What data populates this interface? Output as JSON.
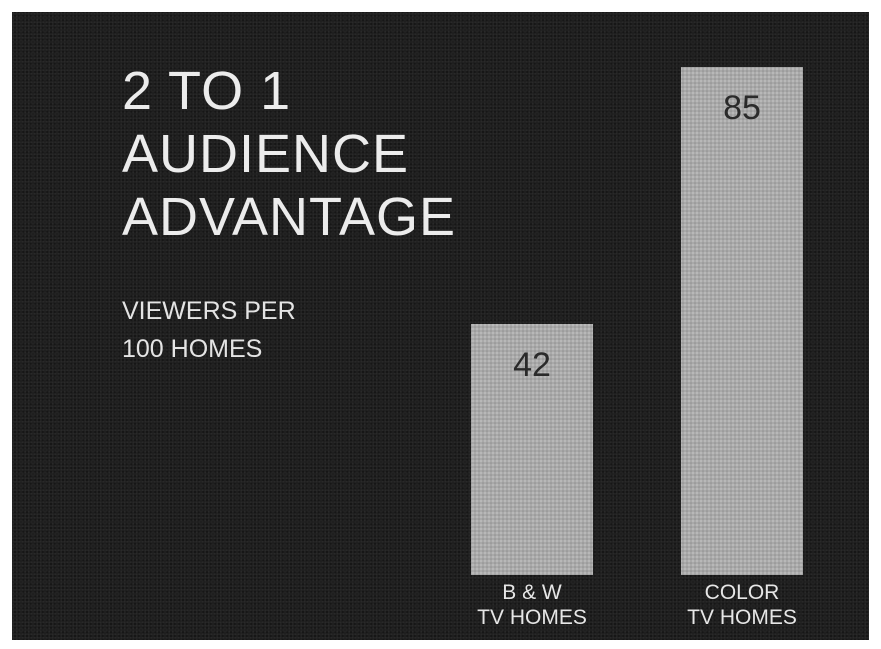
{
  "headline": [
    "2 TO 1",
    "AUDIENCE",
    "ADVANTAGE"
  ],
  "subtitle": [
    "VIEWERS PER",
    "100 HOMES"
  ],
  "colors": {
    "background": "#1d1d1d",
    "bar": "#a7a7a7",
    "text": "#ececec",
    "value_text": "#2a2a2a"
  },
  "chart_data": {
    "type": "bar",
    "title": "2 TO 1 AUDIENCE ADVANTAGE",
    "ylabel": "VIEWERS PER 100 HOMES",
    "categories": [
      [
        "B & W",
        "TV HOMES"
      ],
      [
        "COLOR",
        "TV HOMES"
      ]
    ],
    "values": [
      42,
      85
    ],
    "value_labels": [
      "42",
      "85"
    ],
    "ylim": [
      0,
      85
    ],
    "grid": false,
    "legend": "none"
  }
}
